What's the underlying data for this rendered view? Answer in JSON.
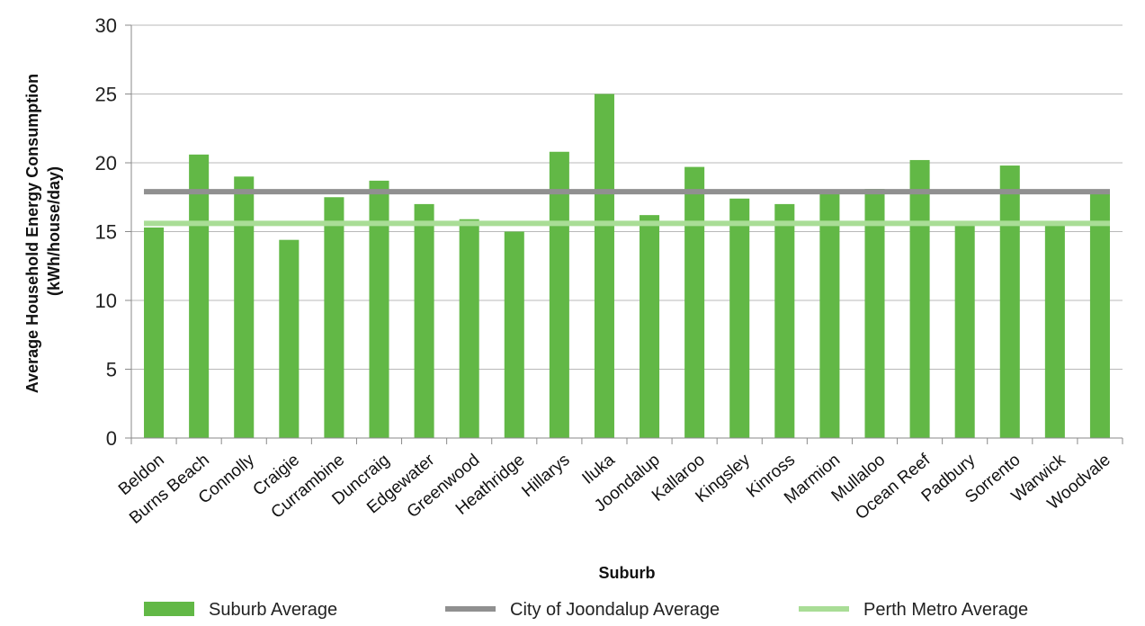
{
  "chart_data": {
    "type": "bar",
    "xlabel": "Suburb",
    "ylabel_line1": "Average Household Energy Consumption",
    "ylabel_line2": "(kWh/house/day)",
    "ylim": [
      0,
      30
    ],
    "yticks": [
      0,
      5,
      10,
      15,
      20,
      25,
      30
    ],
    "grid": "horizontal",
    "legend_position": "bottom",
    "categories": [
      "Beldon",
      "Burns Beach",
      "Connolly",
      "Craigie",
      "Currambine",
      "Duncraig",
      "Edgewater",
      "Greenwood",
      "Heathridge",
      "Hillarys",
      "Iluka",
      "Joondalup",
      "Kallaroo",
      "Kingsley",
      "Kinross",
      "Marmion",
      "Mullaloo",
      "Ocean Reef",
      "Padbury",
      "Sorrento",
      "Warwick",
      "Woodvale"
    ],
    "series": [
      {
        "name": "Suburb Average",
        "kind": "bar",
        "color": "#62b846",
        "values": [
          15.3,
          20.6,
          19.0,
          14.4,
          17.5,
          18.7,
          17.0,
          15.9,
          15.0,
          20.8,
          25.0,
          16.2,
          19.7,
          17.4,
          17.0,
          17.8,
          18.1,
          20.2,
          15.5,
          19.8,
          15.5,
          18.0
        ]
      },
      {
        "name": "City of Joondalup Average",
        "kind": "reference-line",
        "color": "#909090",
        "value": 17.9
      },
      {
        "name": "Perth Metro Average",
        "kind": "reference-line",
        "color": "#a9dd96",
        "value": 15.6
      }
    ]
  }
}
